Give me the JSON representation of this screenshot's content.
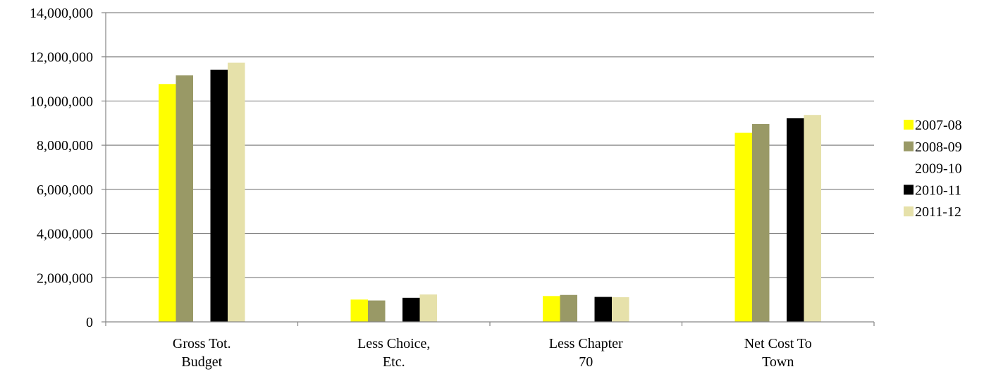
{
  "chart_data": {
    "type": "bar",
    "categories": [
      [
        "Gross Tot.",
        "Budget"
      ],
      [
        "Less Choice,",
        "Etc."
      ],
      [
        "Less Chapter",
        "70"
      ],
      [
        "Net Cost To",
        "Town"
      ]
    ],
    "series": [
      {
        "name": "2007-08",
        "color": "#FFFF00",
        "values": [
          10770000,
          1010000,
          1170000,
          8560000
        ]
      },
      {
        "name": "2008-09",
        "color": "#999966",
        "values": [
          11160000,
          970000,
          1220000,
          8960000
        ]
      },
      {
        "name": "2009-10",
        "color": "#FFFFFF",
        "values": [
          0,
          0,
          0,
          0
        ]
      },
      {
        "name": "2010-11",
        "color": "#000000",
        "values": [
          11420000,
          1090000,
          1130000,
          9220000
        ]
      },
      {
        "name": "2011-12",
        "color": "#E6E1AA",
        "values": [
          11740000,
          1240000,
          1120000,
          9370000
        ]
      }
    ],
    "ylim": [
      0,
      14000000
    ],
    "yticks": [
      "0",
      "2,000,000",
      "4,000,000",
      "6,000,000",
      "8,000,000",
      "10,000,000",
      "12,000,000",
      "14,000,000"
    ],
    "ytick_step": 2000000,
    "grid": true,
    "legend_position": "right"
  }
}
